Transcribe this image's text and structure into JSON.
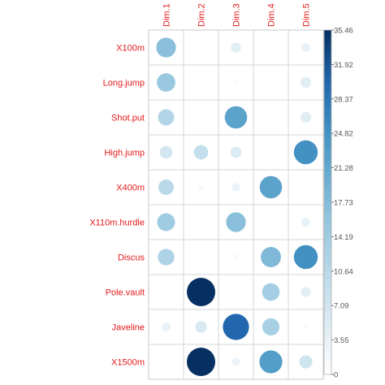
{
  "chart_data": {
    "type": "heatmap",
    "style": "circle-correlation-plot",
    "columns": [
      "Dim.1",
      "Dim.2",
      "Dim.3",
      "Dim.4",
      "Dim.5"
    ],
    "rows": [
      "X100m",
      "Long.jump",
      "Shot.put",
      "High.jump",
      "X400m",
      "X110m.hurdle",
      "Discus",
      "Pole.vault",
      "Javeline",
      "X1500m"
    ],
    "values": [
      [
        17,
        0.5,
        4.5,
        0,
        3.5
      ],
      [
        15,
        0.5,
        1,
        0.3,
        5
      ],
      [
        11.5,
        0,
        22,
        0.5,
        5
      ],
      [
        7,
        9,
        5.5,
        0.5,
        25
      ],
      [
        10.5,
        1.5,
        3,
        22,
        0.2
      ],
      [
        14,
        0,
        17,
        0,
        3.5
      ],
      [
        12,
        0,
        1.3,
        18,
        25
      ],
      [
        0.2,
        35.46,
        0.1,
        13.5,
        4.5
      ],
      [
        3.5,
        6,
        30,
        13,
        1
      ],
      [
        0,
        35.46,
        3,
        23,
        7.5
      ]
    ],
    "colorbar_range": [
      0,
      35.46
    ],
    "colorbar_ticks": [
      "0",
      "3.55",
      "7.09",
      "10.64",
      "14.19",
      "17.73",
      "21.28",
      "24.82",
      "28.37",
      "31.92",
      "35.46"
    ],
    "label_color": "#e41a1c",
    "grid": true,
    "legend_placement": "right"
  }
}
